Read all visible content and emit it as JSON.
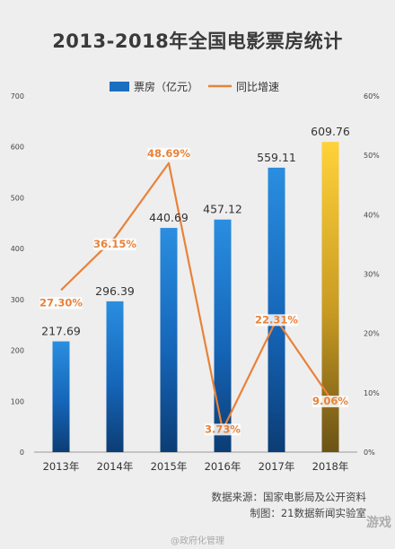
{
  "title": "2013-2018年全国电影票房统计",
  "source_line1": "数据来源：国家电影局及公开资料",
  "source_line2": "制图：21数据新闻实验室",
  "weibo_text": "@政府化管理",
  "watermark_text": "游戏",
  "colors": {
    "bar": "#1a6fc0",
    "bar_highlight": "#f2c12e",
    "line": "#e8823a",
    "axis_text": "#444444"
  },
  "chart_data": {
    "type": "bar",
    "categories": [
      "2013年",
      "2014年",
      "2015年",
      "2016年",
      "2017年",
      "2018年"
    ],
    "series": [
      {
        "name": "票房（亿元）",
        "values": [
          217.69,
          296.39,
          440.69,
          457.12,
          559.11,
          609.76
        ],
        "axis": "left",
        "labels": [
          "217.69",
          "296.39",
          "440.69",
          "457.12",
          "559.11",
          "609.76"
        ]
      },
      {
        "name": "同比增速",
        "type": "line",
        "values": [
          27.3,
          36.15,
          48.69,
          3.73,
          22.31,
          9.06
        ],
        "axis": "right",
        "labels": [
          "27.30%",
          "36.15%",
          "48.69%",
          "3.73%",
          "22.31%",
          "9.06%"
        ]
      }
    ],
    "ylim": [
      0,
      700
    ],
    "y_ticks": [
      "0",
      "100",
      "200",
      "300",
      "400",
      "500",
      "600",
      "700"
    ],
    "y2lim": [
      0,
      60
    ],
    "y2_ticks": [
      "0%",
      "10%",
      "20%",
      "30%",
      "40%",
      "50%",
      "60%"
    ],
    "legend_position": "top"
  }
}
